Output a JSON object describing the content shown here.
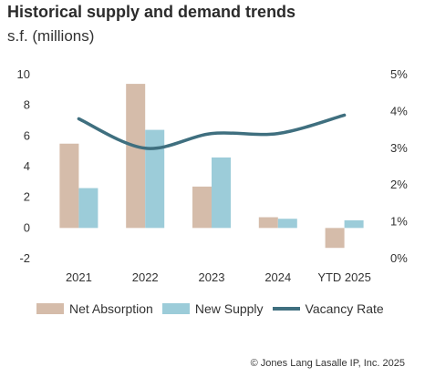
{
  "chart_data": {
    "type": "bar",
    "title": "Historical supply and demand trends",
    "subtitle": "s.f. (millions)",
    "categories": [
      "2021",
      "2022",
      "2023",
      "2024",
      "YTD 2025"
    ],
    "series": [
      {
        "name": "Net Absorption",
        "type": "bar",
        "axis": "left",
        "color": "#d5bcaa",
        "values": [
          5.5,
          9.4,
          2.7,
          0.7,
          -1.3
        ]
      },
      {
        "name": "New Supply",
        "type": "bar",
        "axis": "left",
        "color": "#9cccd9",
        "values": [
          2.6,
          6.4,
          4.6,
          0.6,
          0.5
        ]
      },
      {
        "name": "Vacancy Rate",
        "type": "line",
        "axis": "right",
        "color": "#3f6f7f",
        "values": [
          3.8,
          3.0,
          3.4,
          3.4,
          3.9
        ]
      }
    ],
    "y_left": {
      "min": -2,
      "max": 10,
      "ticks": [
        "10",
        "8",
        "6",
        "4",
        "2",
        "0",
        "-2"
      ]
    },
    "y_right": {
      "min": 0,
      "max": 5,
      "ticks": [
        "5%",
        "4%",
        "3%",
        "2%",
        "1%",
        "0%"
      ]
    },
    "grid": false,
    "legend_position": "bottom"
  },
  "footer": {
    "copyright": "© Jones Lang Lasalle IP, Inc. 2025"
  }
}
